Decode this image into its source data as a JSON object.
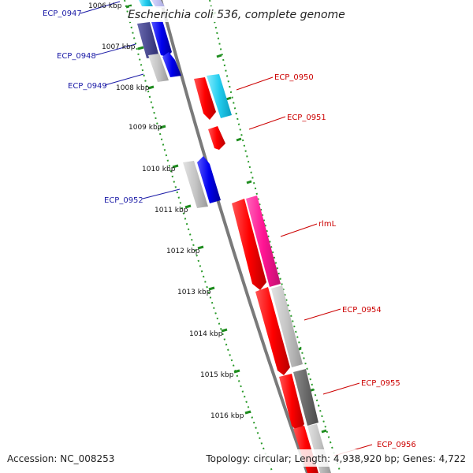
{
  "title": "Escherichia coli 536, complete genome",
  "accession": "Accession: NC_008253",
  "summary": "Topology: circular; Length: 4,938,920 bp; Genes: 4,722",
  "colors": {
    "forward_gene": "#ff0000",
    "reverse_gene": "#0000ff",
    "backbone": "#888888",
    "tick": "#1e8c1e",
    "label_forward": "#cc0000",
    "label_reverse": "#1a1aa6"
  },
  "ticks": [
    "1006 kbp",
    "1007 kbp",
    "1008 kbp",
    "1009 kbp",
    "1010 kbp",
    "1011 kbp",
    "1012 kbp",
    "1013 kbp",
    "1014 kbp",
    "1015 kbp",
    "1016 kbp"
  ],
  "gene_labels": {
    "left": [
      "ECP_0947",
      "ECP_0948",
      "ECP_0949",
      "ECP_0952"
    ],
    "right": [
      "ECP_0950",
      "ECP_0951",
      "rlmL",
      "ECP_0954",
      "ECP_0955",
      "ECP_0956"
    ]
  }
}
